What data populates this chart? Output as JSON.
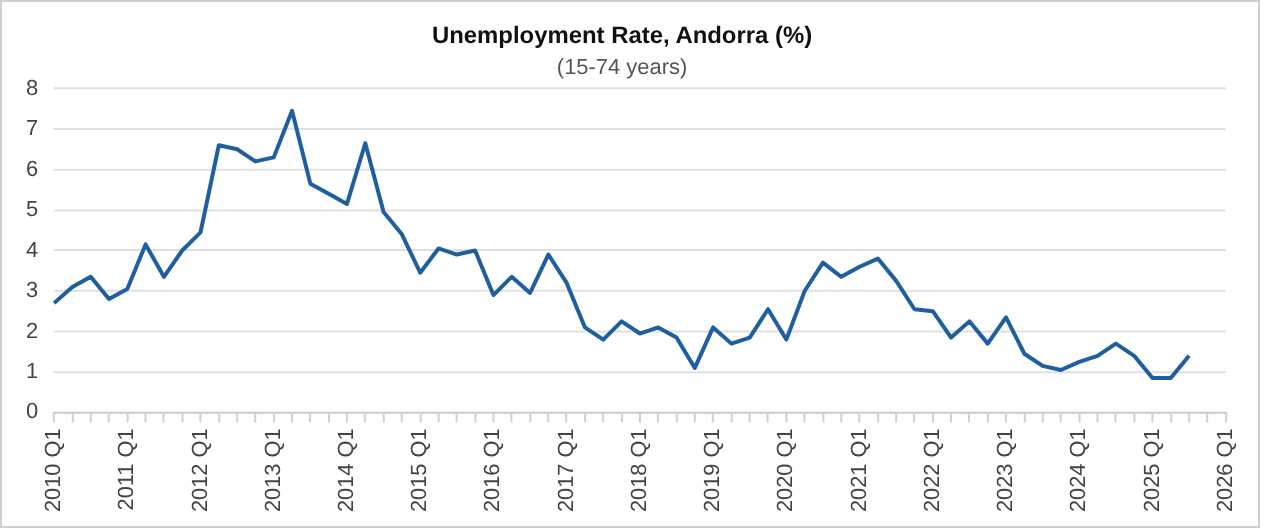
{
  "chart_data": {
    "type": "line",
    "title": "Unemployment Rate, Andorra (%)",
    "subtitle": "(15-74 years)",
    "categories": [
      "2010 Q1",
      null,
      null,
      null,
      "2011 Q1",
      null,
      null,
      null,
      "2012 Q1",
      null,
      null,
      null,
      "2013 Q1",
      null,
      null,
      null,
      "2014 Q1",
      null,
      null,
      null,
      "2015 Q1",
      null,
      null,
      null,
      "2016 Q1",
      null,
      null,
      null,
      "2017 Q1",
      null,
      null,
      null,
      "2018 Q1",
      null,
      null,
      null,
      "2019 Q1",
      null,
      null,
      null,
      "2020 Q1",
      null,
      null,
      null,
      "2021 Q1",
      null,
      null,
      null,
      "2022 Q1",
      null,
      null,
      null,
      "2023 Q1",
      null,
      null,
      null,
      "2024 Q1",
      null,
      null,
      null,
      "2025 Q1",
      null,
      null,
      null,
      "2026 Q1"
    ],
    "series": [
      {
        "color": "#1f5fa0",
        "values": [
          2.7,
          3.1,
          3.35,
          2.8,
          3.05,
          4.15,
          3.35,
          4.0,
          4.45,
          6.6,
          6.5,
          6.2,
          6.3,
          7.45,
          5.65,
          5.4,
          5.15,
          6.65,
          4.95,
          4.4,
          3.45,
          4.05,
          3.9,
          4.0,
          2.9,
          3.35,
          2.95,
          3.9,
          3.2,
          2.1,
          1.8,
          2.25,
          1.95,
          2.1,
          1.85,
          1.1,
          2.1,
          1.7,
          1.85,
          2.55,
          1.8,
          3.0,
          3.7,
          3.35,
          3.6,
          3.8,
          3.25,
          2.55,
          2.5,
          1.85,
          2.25,
          1.7,
          2.35,
          1.45,
          1.15,
          1.05,
          1.25,
          1.4,
          1.7,
          1.4,
          0.85,
          0.85,
          1.4,
          null,
          null
        ]
      }
    ],
    "ylim": [
      0,
      8
    ],
    "yticks": [
      0,
      1,
      2,
      3,
      4,
      5,
      6,
      7,
      8
    ],
    "grid": "y",
    "legend": false,
    "marker": "none",
    "line_style": "solid"
  }
}
